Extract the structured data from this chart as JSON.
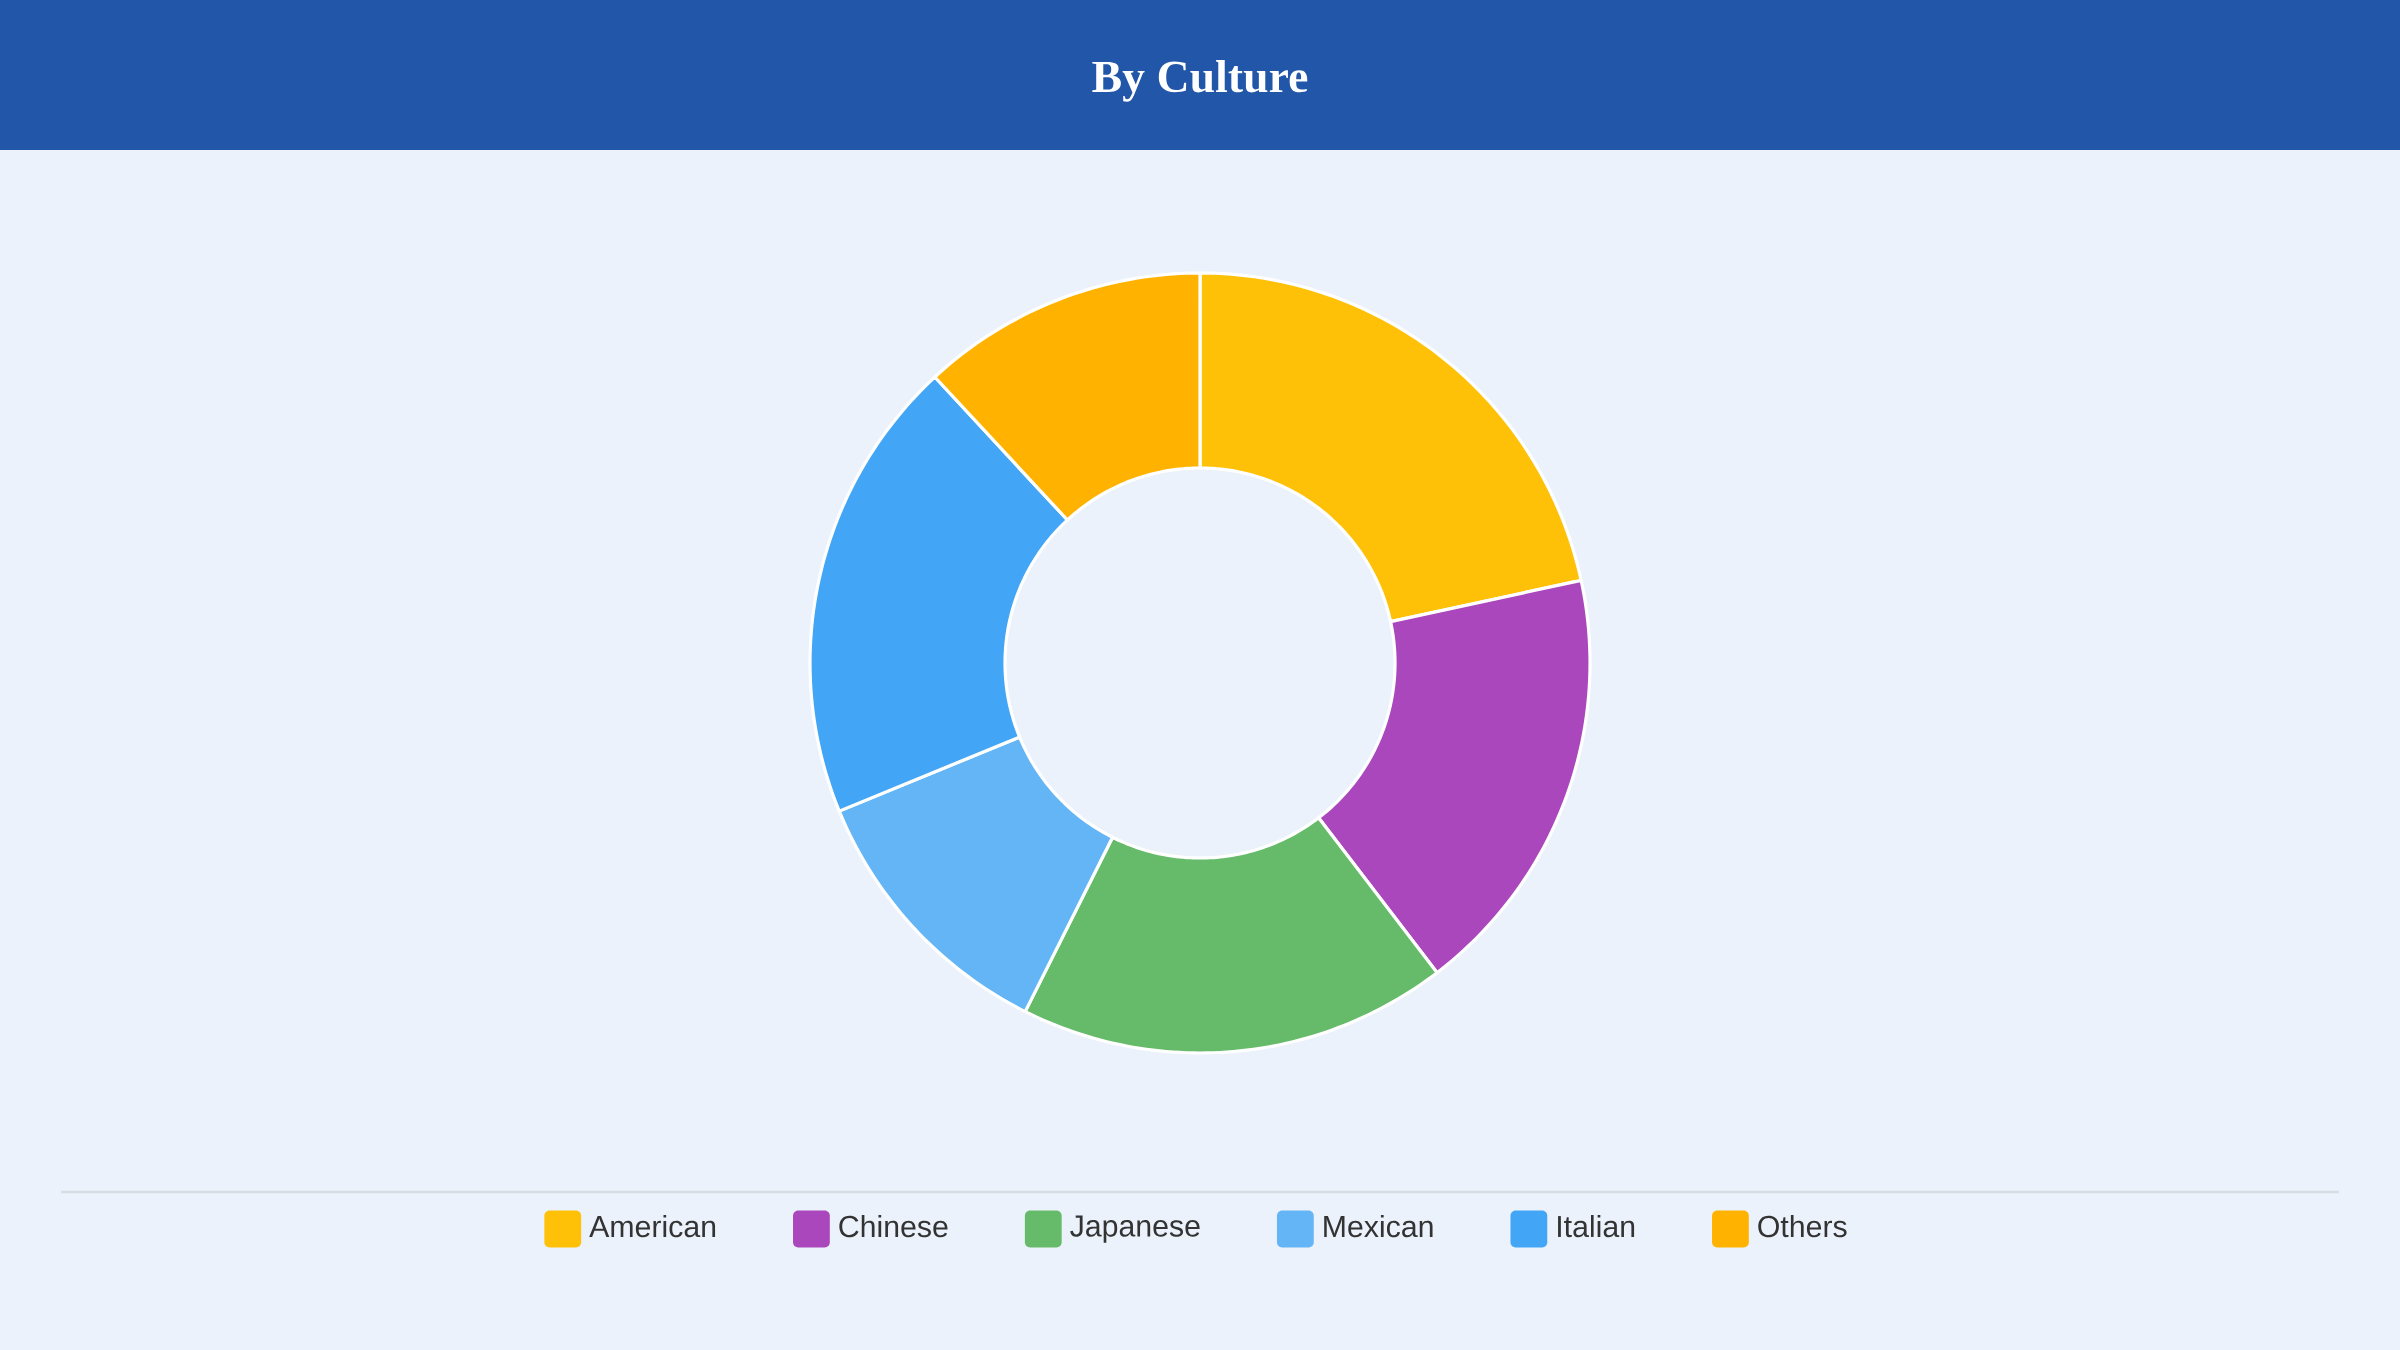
{
  "chart_data": {
    "type": "donut",
    "title": "By Culture",
    "categories": [
      "American",
      "Chinese",
      "Japanese",
      "Mexican",
      "Italian",
      "Others"
    ],
    "values": [
      21.6,
      18.0,
      17.8,
      11.4,
      19.3,
      11.9
    ],
    "colors": [
      "#ffc107",
      "#ab47bc",
      "#66bb6a",
      "#64b5f6",
      "#42a5f5",
      "#ffb300"
    ],
    "legend": "bottom"
  }
}
